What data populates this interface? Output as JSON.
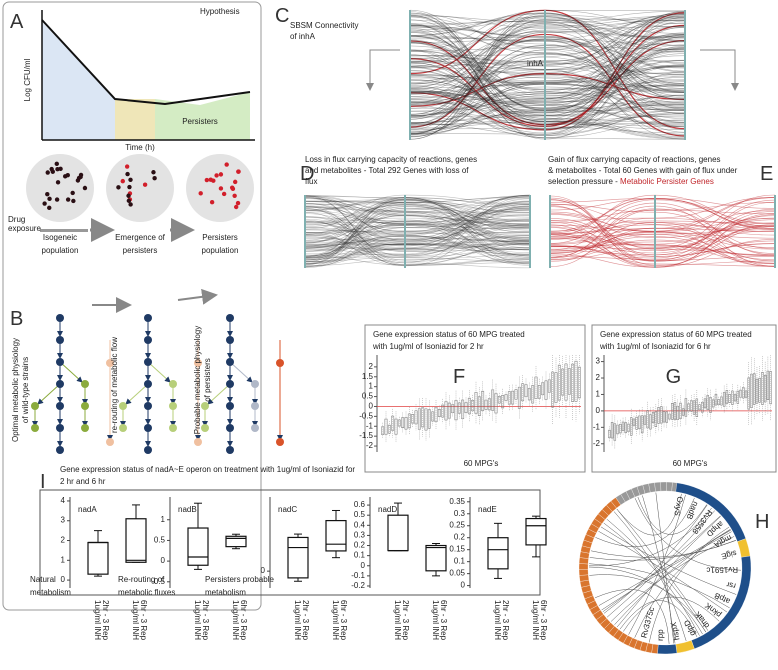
{
  "panel_a": {
    "letter": "A",
    "title": "Hypothesis",
    "y_label": "Log CFU/ml",
    "x_label": "Time (h)",
    "phase_label": "Persisters",
    "drug_label": [
      "Drug",
      "exposure"
    ],
    "populations": [
      [
        "Isogeneic",
        "population"
      ],
      [
        "Emergence of",
        "persisters"
      ],
      [
        "Persisters",
        "population"
      ]
    ]
  },
  "panel_b": {
    "letter": "B",
    "rotated_labels": [
      [
        "Optimal metabolic physiology",
        "of wild-type strains"
      ],
      [
        "re-routing of metabolic flow"
      ],
      [
        "Probable metabolic physiology",
        "of persisters"
      ]
    ],
    "captions": [
      [
        "Natural",
        "metabolism"
      ],
      [
        "Re-routing of",
        "metabolic fluxes"
      ],
      [
        "Persisters probable",
        "metabolism"
      ]
    ]
  },
  "panel_c": {
    "letter": "C",
    "title": [
      "SBSM Connectivity",
      "of inhA"
    ],
    "node_label": "inhA"
  },
  "panel_d": {
    "letter": "D",
    "text": [
      "Loss in flux carrying capacity of reactions, genes",
      "and metabolites - Total 292 Genes with loss of",
      "flux"
    ]
  },
  "panel_e": {
    "letter": "E",
    "text": [
      "Gain of flux carrying capacity of reactions, genes",
      "& metabolites - Total 60 Genes with gain of flux under",
      "selection pressure - "
    ],
    "highlight": "Metabolic Persister Genes"
  },
  "panel_f": {
    "letter": "F",
    "title": [
      "Gene expression status of 60 MPG treated",
      "with 1ug/ml of Isoniazid for 2 hr"
    ],
    "ylim": [
      -2.3,
      2.6
    ],
    "yticks": [
      -2,
      -1.5,
      -1,
      -0.5,
      0,
      0.5,
      1,
      1.5,
      2
    ],
    "x_label": "60 MPG's"
  },
  "panel_g": {
    "letter": "G",
    "title": [
      "Gene expression status of 60 MPG treated",
      "with 1ug/ml of Isoniazid for 6 hr"
    ],
    "ylim": [
      -2.5,
      3.4
    ],
    "yticks": [
      -2,
      -1,
      0,
      1,
      2,
      3
    ],
    "x_label": "60 MPG's"
  },
  "panel_i": {
    "letter": "I",
    "title": [
      "Gene expression status of nadA~E operon on treatment with 1ug/ml of Isoniazid for",
      "2 hr and 6 hr"
    ],
    "x_labels": [
      [
        "1ug/ml INH",
        "2hr - 3 Rep"
      ],
      [
        "1ug/ml INH",
        "6hr - 3 Rep"
      ]
    ],
    "subplots": [
      {
        "name": "nadA",
        "ylim": [
          -0.4,
          4.2
        ],
        "yticks": [
          0,
          1,
          2,
          3,
          4
        ],
        "boxes": [
          [
            0.2,
            0.3,
            1.9,
            1.9,
            2.5
          ],
          [
            0.9,
            0.9,
            1.0,
            3.1,
            3.8
          ]
        ]
      },
      {
        "name": "nadB",
        "ylim": [
          -0.65,
          1.55
        ],
        "yticks": [
          -0.5,
          0,
          0.5,
          1
        ],
        "boxes": [
          [
            -0.2,
            -0.1,
            0.1,
            0.8,
            1.4
          ],
          [
            0.3,
            0.35,
            0.55,
            0.6,
            0.65
          ]
        ]
      },
      {
        "name": "nadC",
        "ylim": [
          -0.5,
          2.2
        ],
        "yticks": [
          0
        ],
        "boxes": [
          [
            -0.3,
            -0.2,
            0.7,
            1.0,
            1.1
          ],
          [
            0.4,
            0.6,
            0.8,
            1.5,
            1.8
          ]
        ]
      },
      {
        "name": "nadD",
        "ylim": [
          -0.22,
          0.68
        ],
        "yticks": [
          -0.2,
          -0.1,
          0,
          0.1,
          0.2,
          0.3,
          0.4,
          0.5,
          0.6
        ],
        "boxes": [
          [
            0.15,
            0.15,
            0.15,
            0.5,
            0.62
          ],
          [
            -0.1,
            -0.05,
            0.18,
            0.2,
            0.22
          ]
        ]
      },
      {
        "name": "nadE",
        "ylim": [
          -0.01,
          0.37
        ],
        "yticks": [
          0,
          0.05,
          0.1,
          0.15,
          0.2,
          0.25,
          0.3,
          0.35
        ],
        "boxes": [
          [
            0.03,
            0.07,
            0.15,
            0.2,
            0.26
          ],
          [
            0.12,
            0.17,
            0.25,
            0.28,
            0.29
          ]
        ]
      }
    ]
  },
  "panel_h": {
    "letter": "H",
    "genes": [
      "OxyS",
      "nadB",
      "Rv3558",
      "ahpD",
      "mgtA",
      "sigE",
      "Rv1591c",
      "rsr",
      "atpB",
      "pknK",
      "dnaK",
      "glpD",
      "hspX",
      "rpp",
      "Rv3375c"
    ]
  }
}
